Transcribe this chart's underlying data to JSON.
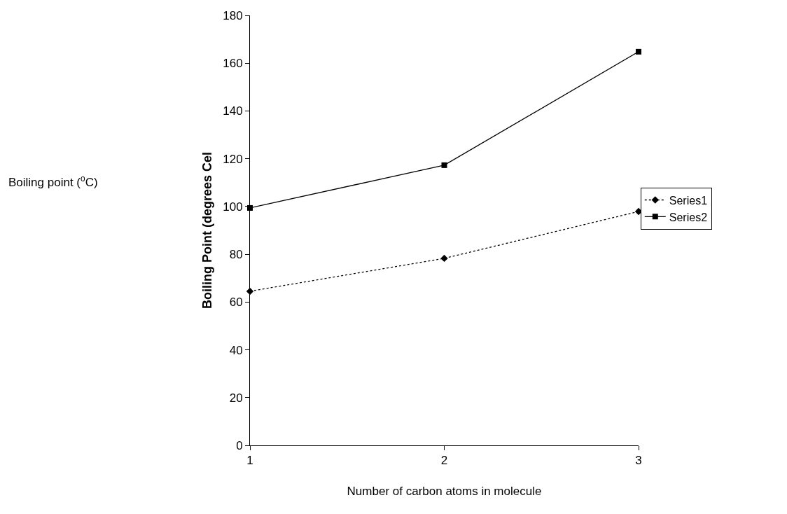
{
  "chart_data": {
    "type": "line",
    "xlabel": "Number of carbon atoms in molecule",
    "ylabel": "Boiling Point (degrees Cel",
    "annotations": [
      "Boiling point ($^{o}$C)"
    ],
    "x": [
      1,
      2,
      3
    ],
    "xlim": [
      1,
      3
    ],
    "xticks": [
      1,
      2,
      3
    ],
    "ylim": [
      0,
      180
    ],
    "yticks": [
      0,
      20,
      40,
      60,
      80,
      100,
      120,
      140,
      160,
      180
    ],
    "grid": false,
    "legend": "right",
    "series": [
      {
        "name": "Series1",
        "color": "#000000",
        "values": [
          64.5,
          78.3,
          97.9
        ],
        "marker": "diamond",
        "line_style": "dotted"
      },
      {
        "name": "Series2",
        "color": "#000000",
        "values": [
          99.4,
          117.3,
          164.8
        ],
        "marker": "square",
        "line_style": "solid"
      }
    ]
  }
}
